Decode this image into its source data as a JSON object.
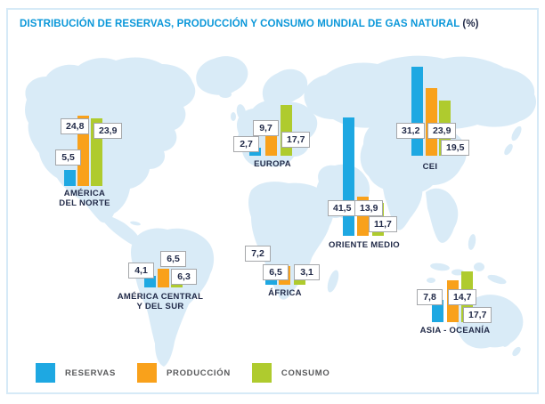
{
  "title": {
    "main": "DISTRIBUCIÓN DE RESERVAS, PRODUCCIÓN Y CONSUMO MUNDIAL DE GAS NATURAL",
    "suffix": "(%)"
  },
  "legend": [
    {
      "label": "RESERVAS",
      "color": "#1EA8E2"
    },
    {
      "label": "PRODUCCIÓN",
      "color": "#F9A11B"
    },
    {
      "label": "CONSUMO",
      "color": "#AFCB2E"
    }
  ],
  "colors": {
    "title_blue": "#0A97D9",
    "text_dark": "#222B49",
    "legend_text": "#58595B",
    "map_land": "#D9EBF7",
    "card_border": "#D6EAF7",
    "label_box_border": "#A5A7AA"
  },
  "chart_data": {
    "type": "bar",
    "title": "DISTRIBUCIÓN DE RESERVAS, PRODUCCIÓN Y CONSUMO MUNDIAL DE GAS NATURAL (%)",
    "unit": "%",
    "legend_position": "bottom-left",
    "series_names": [
      "RESERVAS",
      "PRODUCCIÓN",
      "CONSUMO"
    ],
    "regions": [
      {
        "name": "AMÉRICA\nDEL NORTE",
        "values": [
          5.5,
          24.8,
          23.9
        ],
        "values_display": [
          "5,5",
          "24,8",
          "23,9"
        ]
      },
      {
        "name": "AMÉRICA CENTRAL\nY DEL SUR",
        "values": [
          4.1,
          6.5,
          6.3
        ],
        "values_display": [
          "4,1",
          "6,5",
          "6,3"
        ]
      },
      {
        "name": "EUROPA",
        "values": [
          2.7,
          9.7,
          17.7
        ],
        "values_display": [
          "2,7",
          "9,7",
          "17,7"
        ]
      },
      {
        "name": "ÁFRICA",
        "values": [
          7.2,
          6.5,
          3.1
        ],
        "values_display": [
          "7,2",
          "6,5",
          "3,1"
        ]
      },
      {
        "name": "ORIENTE MEDIO",
        "values": [
          41.5,
          13.9,
          11.7
        ],
        "values_display": [
          "41,5",
          "13,9",
          "11,7"
        ]
      },
      {
        "name": "CEI",
        "values": [
          31.2,
          23.9,
          19.5
        ],
        "values_display": [
          "31,2",
          "23,9",
          "19,5"
        ]
      },
      {
        "name": "ASIA - OCEANÍA",
        "values": [
          7.8,
          14.7,
          17.7
        ],
        "values_display": [
          "7,8",
          "14,7",
          "17,7"
        ]
      }
    ]
  }
}
